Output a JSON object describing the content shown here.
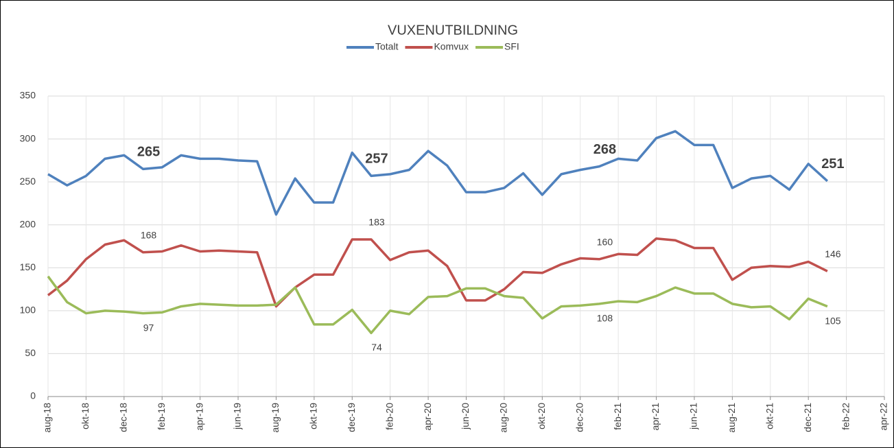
{
  "chart_data": {
    "type": "line",
    "title": "VUXENUTBILDNING",
    "categories": [
      "aug-18",
      null,
      "okt-18",
      null,
      "dec-18",
      null,
      "feb-19",
      null,
      "apr-19",
      null,
      "jun-19",
      null,
      "aug-19",
      null,
      "okt-19",
      null,
      "dec-19",
      null,
      "feb-20",
      null,
      "apr-20",
      null,
      "jun-20",
      null,
      "aug-20",
      null,
      "okt-20",
      null,
      "dec-20",
      null,
      "feb-21",
      null,
      "apr-21",
      null,
      "jun-21",
      null,
      "aug-21",
      null,
      "okt-21",
      null,
      "dec-21",
      null,
      "feb-22",
      null,
      "apr-22"
    ],
    "series": [
      {
        "name": "Totalt",
        "color": "#4f81bd",
        "values": [
          259,
          246,
          257,
          277,
          281,
          265,
          267,
          281,
          277,
          277,
          275,
          274,
          212,
          254,
          226,
          226,
          284,
          257,
          259,
          264,
          286,
          269,
          238,
          238,
          243,
          260,
          235,
          259,
          264,
          268,
          277,
          275,
          301,
          309,
          293,
          293,
          243,
          254,
          257,
          241,
          271,
          251,
          null,
          null,
          null
        ]
      },
      {
        "name": "Komvux",
        "color": "#c0504d",
        "values": [
          118,
          135,
          160,
          177,
          182,
          168,
          169,
          176,
          169,
          170,
          169,
          168,
          105,
          127,
          142,
          142,
          183,
          183,
          159,
          168,
          170,
          152,
          112,
          112,
          125,
          145,
          144,
          154,
          161,
          160,
          166,
          165,
          184,
          182,
          173,
          173,
          136,
          150,
          152,
          151,
          157,
          146,
          null,
          null,
          null
        ]
      },
      {
        "name": "SFI",
        "color": "#9bbb59",
        "values": [
          140,
          110,
          97,
          100,
          99,
          97,
          98,
          105,
          108,
          107,
          106,
          106,
          107,
          127,
          84,
          84,
          101,
          74,
          100,
          96,
          116,
          117,
          126,
          126,
          117,
          115,
          91,
          105,
          106,
          108,
          111,
          110,
          117,
          127,
          120,
          120,
          108,
          104,
          105,
          90,
          114,
          105,
          null,
          null,
          null
        ]
      }
    ],
    "data_labels_at": [
      5,
      17,
      29,
      41
    ],
    "ylim": [
      0,
      350
    ],
    "yticks": [
      0,
      50,
      100,
      150,
      200,
      250,
      300,
      350
    ],
    "grid": true,
    "legend": "top"
  }
}
